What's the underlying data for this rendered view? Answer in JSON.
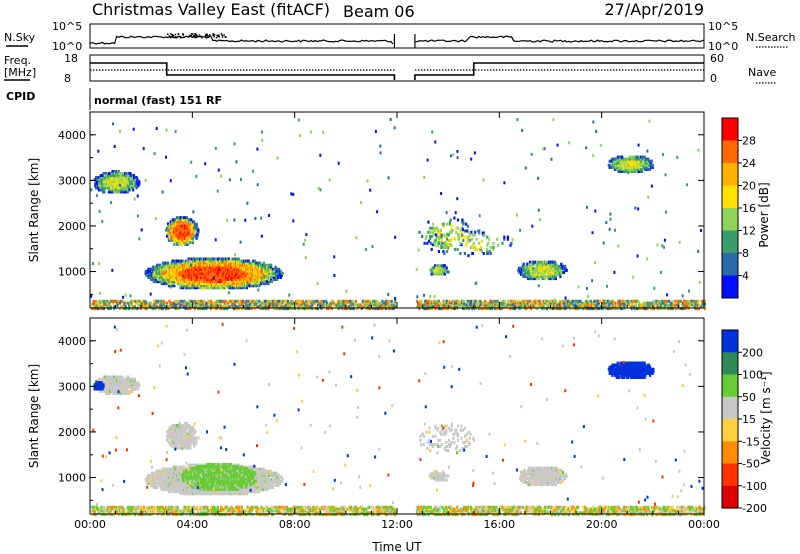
{
  "header": {
    "station": "Christmas Valley East (fitACF)",
    "beam": "Beam 06",
    "date": "27/Apr/2019"
  },
  "panels": {
    "noise": {
      "label": "N.Sky",
      "right_label": "N.Search",
      "ticks_left": [
        "10^5",
        "10^0"
      ],
      "ticks_right": [
        "10^5",
        "10^0"
      ]
    },
    "freq": {
      "label_line1": "Freq.",
      "label_line2": "[MHz]",
      "right_label": "Nave",
      "ticks_left": [
        "18",
        "8"
      ],
      "ticks_right": [
        "60",
        "0"
      ]
    },
    "cpid": {
      "label": "CPID",
      "value": "normal (fast) 151 RF"
    }
  },
  "colorbars": {
    "power": {
      "title": "Power [dB]",
      "ticks": [
        "28",
        "24",
        "20",
        "16",
        "12",
        "8",
        "4"
      ],
      "colors": [
        "#ff0000",
        "#ff6a00",
        "#ffb300",
        "#ffe000",
        "#8fd35a",
        "#3a9d6a",
        "#2b6aa8",
        "#0010ff"
      ]
    },
    "velocity": {
      "title": "Velocity [m s⁻¹]",
      "ticks": [
        "200",
        "100",
        "50",
        "15",
        "-15",
        "-50",
        "-100",
        "-200"
      ],
      "colors": [
        "#0033dd",
        "#2e8a57",
        "#66cc33",
        "#c8c8c8",
        "#ffd040",
        "#ff8c00",
        "#ff3300",
        "#dd0000"
      ]
    }
  },
  "chart_data": [
    {
      "type": "heatmap",
      "name": "power",
      "ylabel": "Slant Range [km]",
      "xlabel": "",
      "xlim": [
        "00:00",
        "24:00"
      ],
      "ylim": [
        200,
        4500
      ],
      "yticks": [
        "4000",
        "3000",
        "2000",
        "1000"
      ],
      "xticks": [
        "00:00",
        "04:00",
        "08:00",
        "12:00",
        "16:00",
        "20:00",
        "00:00"
      ],
      "data_gap": [
        11.9,
        12.7
      ],
      "regions": [
        {
          "t": [
            0.1,
            1.9
          ],
          "r": [
            2700,
            3200
          ],
          "level": "12-20 dB"
        },
        {
          "t": [
            2.9,
            4.2
          ],
          "r": [
            1550,
            2200
          ],
          "level": "16-28 dB"
        },
        {
          "t": [
            2.1,
            7.5
          ],
          "r": [
            600,
            1300
          ],
          "level": "16-28 dB"
        },
        {
          "t": [
            13.2,
            14.0
          ],
          "r": [
            900,
            1150
          ],
          "level": "8-16 dB"
        },
        {
          "t": [
            16.7,
            18.6
          ],
          "r": [
            800,
            1250
          ],
          "level": "12-20 dB"
        },
        {
          "t": [
            20.2,
            22.0
          ],
          "r": [
            3150,
            3550
          ],
          "level": "8-16 dB"
        },
        {
          "t": [
            0.0,
            24.0
          ],
          "r": [
            200,
            400
          ],
          "level": "ground scatter"
        }
      ]
    },
    {
      "type": "heatmap",
      "name": "velocity",
      "ylabel": "Slant Range [km]",
      "xlabel": "Time UT",
      "xlim": [
        "00:00",
        "24:00"
      ],
      "ylim": [
        200,
        4500
      ],
      "yticks": [
        "4000",
        "3000",
        "2000",
        "1000"
      ],
      "xticks": [
        "00:00",
        "04:00",
        "08:00",
        "12:00",
        "16:00",
        "20:00",
        "00:00"
      ],
      "data_gap": [
        11.9,
        12.7
      ],
      "regions": [
        {
          "t": [
            0.1,
            1.9
          ],
          "r": [
            2800,
            3250
          ],
          "velocity": "-15 to 15 m/s"
        },
        {
          "t": [
            0.1,
            0.5
          ],
          "r": [
            2900,
            3100
          ],
          "velocity": "> 200 m/s"
        },
        {
          "t": [
            2.9,
            4.2
          ],
          "r": [
            1600,
            2200
          ],
          "velocity": "-15 to 15 m/s"
        },
        {
          "t": [
            2.1,
            7.5
          ],
          "r": [
            600,
            1300
          ],
          "velocity": "-15 to 15 m/s"
        },
        {
          "t": [
            3.5,
            6.5
          ],
          "r": [
            700,
            1300
          ],
          "velocity": "15 to 50 m/s"
        },
        {
          "t": [
            20.2,
            22.0
          ],
          "r": [
            3150,
            3550
          ],
          "velocity": "> 200 m/s"
        },
        {
          "t": [
            0.0,
            24.0
          ],
          "r": [
            200,
            400
          ],
          "velocity": "15 to 100 m/s"
        }
      ]
    }
  ]
}
